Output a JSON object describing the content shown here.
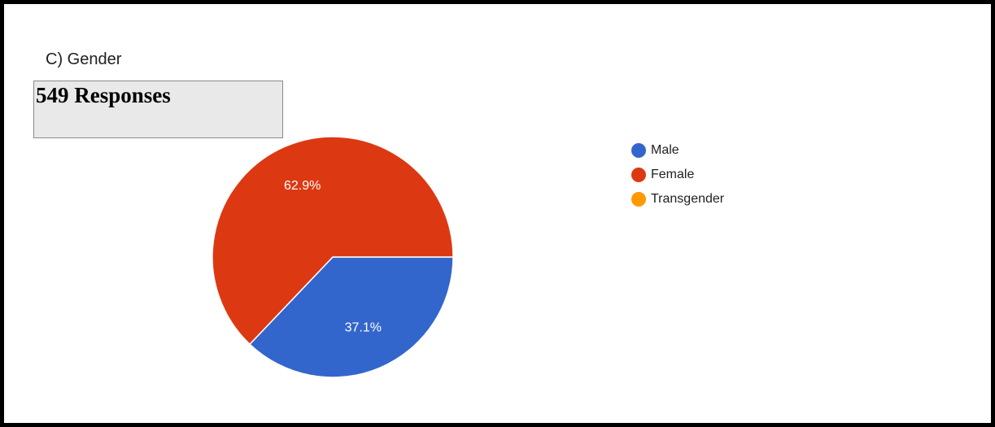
{
  "question": {
    "title": "C) Gender"
  },
  "responses": {
    "label": "549 Responses"
  },
  "chart_data": {
    "type": "pie",
    "categories": [
      "Male",
      "Female",
      "Transgender"
    ],
    "values": [
      37.1,
      62.9,
      0
    ],
    "data_labels": [
      "37.1%",
      "62.9%",
      ""
    ],
    "colors": [
      "#3366cc",
      "#dc3912",
      "#ff9900"
    ],
    "legend": "right"
  }
}
